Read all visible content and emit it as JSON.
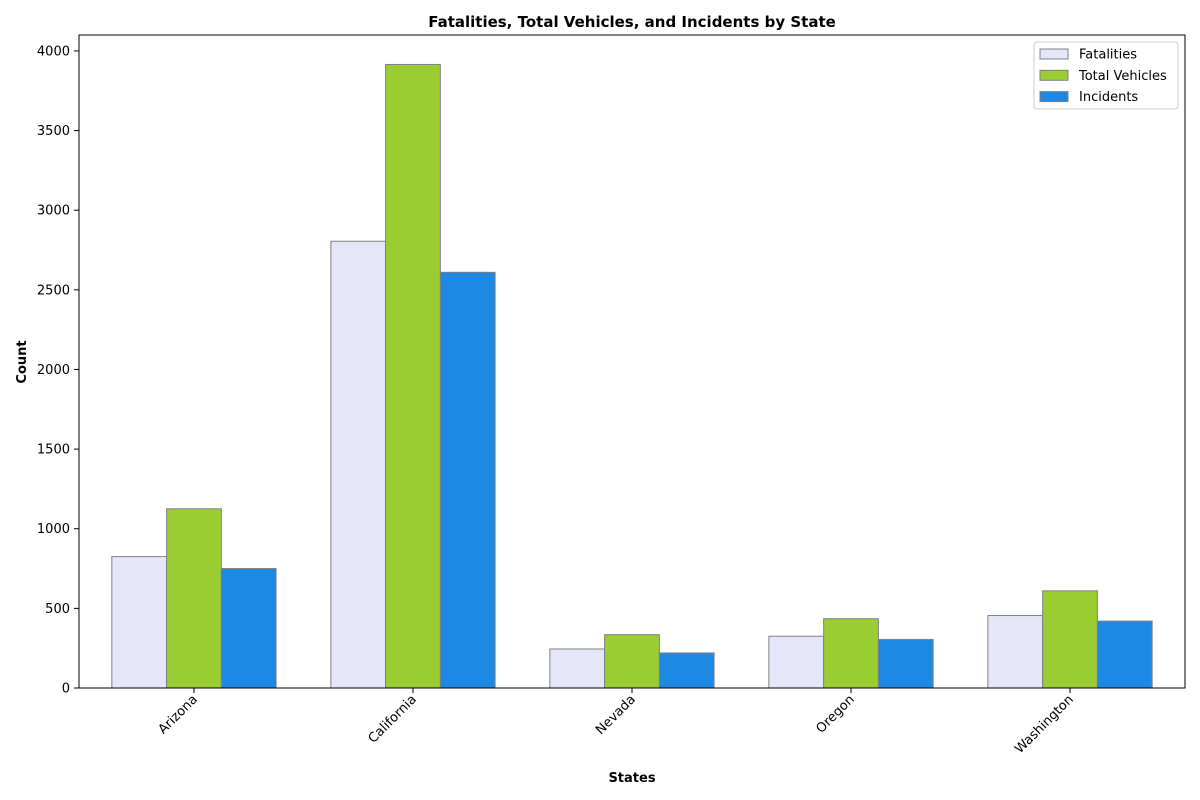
{
  "chart_data": {
    "type": "bar",
    "title": "Fatalities, Total Vehicles, and Incidents by State",
    "xlabel": "States",
    "ylabel": "Count",
    "categories": [
      "Arizona",
      "California",
      "Nevada",
      "Oregon",
      "Washington"
    ],
    "series": [
      {
        "name": "Fatalities",
        "color": "#e6e6fa",
        "values": [
          825,
          2805,
          245,
          325,
          455
        ]
      },
      {
        "name": "Total Vehicles",
        "color": "#9acd32",
        "values": [
          1125,
          3915,
          335,
          435,
          610
        ]
      },
      {
        "name": "Incidents",
        "color": "#1e88e5",
        "values": [
          750,
          2610,
          220,
          305,
          420
        ]
      }
    ],
    "ylim": [
      0,
      4100
    ],
    "yticks": [
      0,
      500,
      1000,
      1500,
      2000,
      2500,
      3000,
      3500,
      4000
    ],
    "grid": false,
    "legend_position": "top-right",
    "bar_edge_color": "#808080"
  }
}
